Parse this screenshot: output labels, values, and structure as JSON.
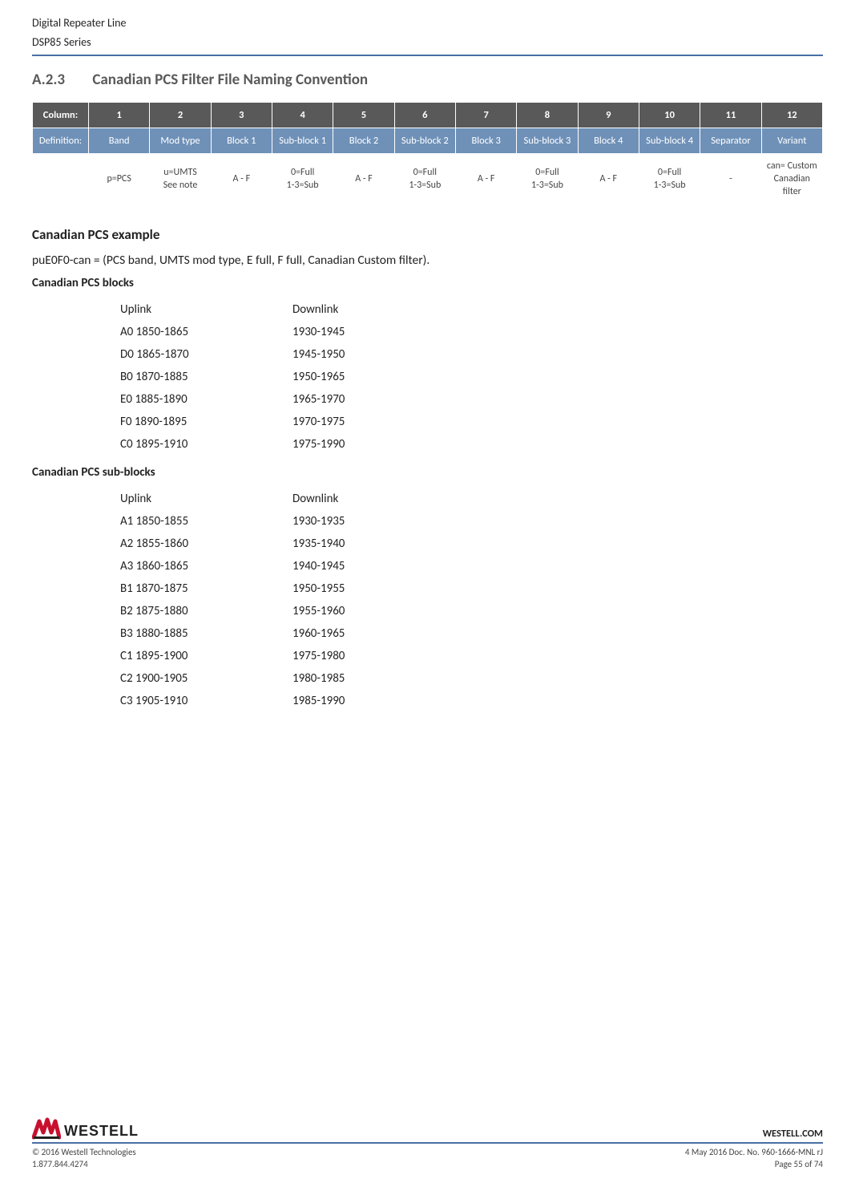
{
  "header": {
    "line1": "Digital Repeater Line",
    "line2": "DSP85 Series"
  },
  "section": {
    "number": "A.2.3",
    "title": "Canadian PCS Filter File Naming Convention"
  },
  "table": {
    "colLabels": {
      "column": "Column:",
      "definition": "Definition:"
    },
    "columns": [
      "1",
      "2",
      "3",
      "4",
      "5",
      "6",
      "7",
      "8",
      "9",
      "10",
      "11",
      "12"
    ],
    "definitions": [
      "Band",
      "Mod type",
      "Block 1",
      "Sub-block 1",
      "Block 2",
      "Sub-block 2",
      "Block 3",
      "Sub-block 3",
      "Block 4",
      "Sub-block 4",
      "Separator",
      "Variant"
    ],
    "values": [
      "p=PCS",
      "u=UMTS\nSee note",
      "A - F",
      "0=Full\n1-3=Sub",
      "A - F",
      "0=Full\n1-3=Sub",
      "A - F",
      "0=Full\n1-3=Sub",
      "A - F",
      "0=Full\n1-3=Sub",
      "-",
      "can= Custom Canadian filter"
    ]
  },
  "example": {
    "heading": "Canadian PCS example",
    "text": "puE0F0-can = (PCS band, UMTS mod type, E full, F full, Canadian Custom filter)."
  },
  "blocks": {
    "heading": "Canadian PCS blocks",
    "header": {
      "uplink": "Uplink",
      "downlink": "Downlink"
    },
    "rows": [
      {
        "u": "A0 1850-1865",
        "d": "1930-1945"
      },
      {
        "u": "D0 1865-1870",
        "d": "1945-1950"
      },
      {
        "u": "B0 1870-1885",
        "d": "1950-1965"
      },
      {
        "u": "E0 1885-1890",
        "d": "1965-1970"
      },
      {
        "u": "F0 1890-1895",
        "d": "1970-1975"
      },
      {
        "u": "C0 1895-1910",
        "d": "1975-1990"
      }
    ]
  },
  "subblocks": {
    "heading": "Canadian PCS sub-blocks",
    "header": {
      "uplink": "Uplink",
      "downlink": "Downlink"
    },
    "rows": [
      {
        "u": "A1 1850-1855",
        "d": "1930-1935"
      },
      {
        "u": "A2 1855-1860",
        "d": "1935-1940"
      },
      {
        "u": "A3 1860-1865",
        "d": "1940-1945"
      },
      {
        "u": "B1 1870-1875",
        "d": "1950-1955"
      },
      {
        "u": "B2 1875-1880",
        "d": "1955-1960"
      },
      {
        "u": "B3 1880-1885",
        "d": "1960-1965"
      },
      {
        "u": "C1 1895-1900",
        "d": "1975-1980"
      },
      {
        "u": "C2 1900-1905",
        "d": "1980-1985"
      },
      {
        "u": "C3 1905-1910",
        "d": "1985-1990"
      }
    ]
  },
  "footer": {
    "logo_text": "WESTELL",
    "domain": "WESTELL.COM",
    "copyright": "© 2016 Westell Technologies",
    "phone": "1.877.844.4274",
    "doc": "4 May 2016 Doc. No. 960-1666-MNL rJ",
    "page": "Page 55 of 74"
  }
}
